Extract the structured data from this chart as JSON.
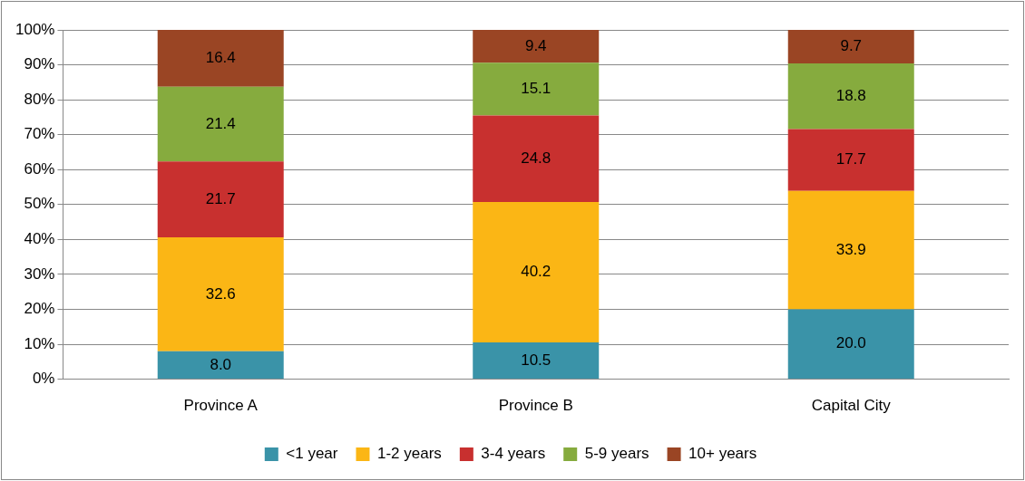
{
  "chart_data": {
    "type": "bar",
    "stacked": true,
    "categories": [
      "Province A",
      "Province B",
      "Capital City"
    ],
    "series": [
      {
        "name": "<1 year",
        "color": "#3a93a8",
        "values": [
          8.0,
          10.5,
          20.0
        ],
        "value_labels": [
          "8.0",
          "10.5",
          "20.0"
        ]
      },
      {
        "name": "1-2 years",
        "color": "#fbb615",
        "values": [
          32.6,
          40.2,
          33.9
        ],
        "value_labels": [
          "32.6",
          "40.2",
          "33.9"
        ]
      },
      {
        "name": "3-4 years",
        "color": "#c8302f",
        "values": [
          21.7,
          24.8,
          17.7
        ],
        "value_labels": [
          "21.7",
          "24.8",
          "17.7"
        ]
      },
      {
        "name": "5-9 years",
        "color": "#86ab3e",
        "values": [
          21.4,
          15.1,
          18.8
        ],
        "value_labels": [
          "21.4",
          "15.1",
          "18.8"
        ]
      },
      {
        "name": "10+ years",
        "color": "#9a4524",
        "values": [
          16.4,
          9.4,
          9.7
        ],
        "value_labels": [
          "16.4",
          "9.4",
          "9.7"
        ]
      }
    ],
    "ylim": [
      0,
      100
    ],
    "yticks": [
      {
        "value": 0,
        "label": "0%"
      },
      {
        "value": 10,
        "label": "10%"
      },
      {
        "value": 20,
        "label": "20%"
      },
      {
        "value": 30,
        "label": "30%"
      },
      {
        "value": 40,
        "label": "40%"
      },
      {
        "value": 50,
        "label": "50%"
      },
      {
        "value": 60,
        "label": "60%"
      },
      {
        "value": 70,
        "label": "70%"
      },
      {
        "value": 80,
        "label": "80%"
      },
      {
        "value": 90,
        "label": "90%"
      },
      {
        "value": 100,
        "label": "100%"
      }
    ],
    "grid": "y",
    "legend": "bottom"
  }
}
